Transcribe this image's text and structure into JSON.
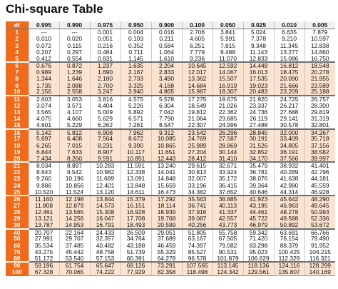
{
  "title": "Chi-square Table",
  "colors": {
    "df_column": "#ef6a1a",
    "band_alt": "#fbe3cf",
    "header_bg": "#f1f1f1"
  },
  "table": {
    "df_header": "df",
    "columns": [
      "0.995",
      "0.990",
      "0.975",
      "0.950",
      "0.900",
      "0.100",
      "0.050",
      "0.025",
      "0.010",
      "0.005"
    ],
    "rows": [
      {
        "df": "1",
        "values": [
          "---",
          "---",
          "0.001",
          "0.004",
          "0.016",
          "2.706",
          "3.841",
          "5.024",
          "6.635",
          "7.879"
        ]
      },
      {
        "df": "2",
        "values": [
          "0.010",
          "0.020",
          "0.051",
          "0.103",
          "0.211",
          "4.605",
          "5.991",
          "7.378",
          "9.210",
          "10.597"
        ]
      },
      {
        "df": "3",
        "values": [
          "0.072",
          "0.115",
          "0.216",
          "0.352",
          "0.584",
          "6.251",
          "7.815",
          "9.348",
          "11.345",
          "12.838"
        ]
      },
      {
        "df": "4",
        "values": [
          "0.207",
          "0.297",
          "0.484",
          "0.711",
          "1.064",
          "7.779",
          "9.488",
          "11.143",
          "13.277",
          "14.860"
        ]
      },
      {
        "df": "5",
        "values": [
          "0.412",
          "0.554",
          "0.831",
          "1.145",
          "1.610",
          "9.236",
          "11.070",
          "12.833",
          "15.086",
          "16.750"
        ]
      },
      {
        "df": "6",
        "values": [
          "0.676",
          "0.872",
          "1.237",
          "1.635",
          "2.204",
          "10.645",
          "12.592",
          "14.449",
          "16.812",
          "18.548"
        ]
      },
      {
        "df": "7",
        "values": [
          "0.989",
          "1.239",
          "1.690",
          "2.167",
          "2.833",
          "12.017",
          "14.067",
          "16.013",
          "18.475",
          "20.278"
        ]
      },
      {
        "df": "8",
        "values": [
          "1.344",
          "1.646",
          "2.180",
          "2.733",
          "3.490",
          "13.362",
          "15.507",
          "17.535",
          "20.090",
          "21.955"
        ]
      },
      {
        "df": "9",
        "values": [
          "1.735",
          "2.088",
          "2.700",
          "3.325",
          "4.168",
          "14.684",
          "16.919",
          "19.023",
          "21.666",
          "23.589"
        ]
      },
      {
        "df": "10",
        "values": [
          "2.156",
          "2.558",
          "3.247",
          "3.940",
          "4.865",
          "15.987",
          "18.307",
          "20.483",
          "23.209",
          "25.188"
        ]
      },
      {
        "df": "11",
        "values": [
          "2.603",
          "3.053",
          "3.816",
          "4.575",
          "5.578",
          "17.275",
          "19.675",
          "21.920",
          "24.725",
          "26.757"
        ]
      },
      {
        "df": "12",
        "values": [
          "3.074",
          "3.571",
          "4.404",
          "5.226",
          "6.304",
          "18.549",
          "21.026",
          "23.337",
          "26.217",
          "28.300"
        ]
      },
      {
        "df": "13",
        "values": [
          "3.565",
          "4.107",
          "5.009",
          "5.892",
          "7.042",
          "19.812",
          "22.362",
          "24.736",
          "27.688",
          "29.819"
        ]
      },
      {
        "df": "14",
        "values": [
          "4.075",
          "4.660",
          "5.629",
          "6.571",
          "7.790",
          "21.064",
          "23.685",
          "26.119",
          "29.141",
          "31.319"
        ]
      },
      {
        "df": "15",
        "values": [
          "4.601",
          "5.229",
          "6.262",
          "7.261",
          "8.547",
          "22.307",
          "24.996",
          "27.488",
          "30.578",
          "32.801"
        ]
      },
      {
        "df": "16",
        "values": [
          "5.142",
          "5.812",
          "6.908",
          "7.962",
          "9.312",
          "23.542",
          "26.296",
          "28.845",
          "32.000",
          "34.267"
        ]
      },
      {
        "df": "17",
        "values": [
          "5.697",
          "6.408",
          "7.564",
          "8.672",
          "10.085",
          "24.769",
          "27.587",
          "30.191",
          "33.409",
          "35.718"
        ]
      },
      {
        "df": "18",
        "values": [
          "6.265",
          "7.015",
          "8.231",
          "9.390",
          "10.865",
          "25.989",
          "28.869",
          "31.526",
          "34.805",
          "37.156"
        ]
      },
      {
        "df": "19",
        "values": [
          "6.844",
          "7.633",
          "8.907",
          "10.117",
          "11.651",
          "27.204",
          "30.144",
          "32.852",
          "36.191",
          "38.582"
        ]
      },
      {
        "df": "20",
        "values": [
          "7.434",
          "8.260",
          "9.591",
          "10.851",
          "12.443",
          "28.412",
          "31.410",
          "34.170",
          "37.566",
          "39.997"
        ]
      },
      {
        "df": "21",
        "values": [
          "8.034",
          "8.897",
          "10.283",
          "11.591",
          "13.240",
          "29.615",
          "32.671",
          "35.479",
          "38.932",
          "41.401"
        ]
      },
      {
        "df": "22",
        "values": [
          "8.643",
          "9.542",
          "10.982",
          "12.338",
          "14.041",
          "30.813",
          "33.924",
          "36.781",
          "40.289",
          "42.796"
        ]
      },
      {
        "df": "23",
        "values": [
          "9.260",
          "10.196",
          "11.689",
          "13.091",
          "14.848",
          "32.007",
          "35.172",
          "38.076",
          "41.638",
          "44.181"
        ]
      },
      {
        "df": "24",
        "values": [
          "9.886",
          "10.856",
          "12.401",
          "13.848",
          "15.659",
          "33.196",
          "36.415",
          "39.364",
          "42.980",
          "45.559"
        ]
      },
      {
        "df": "25",
        "values": [
          "10.520",
          "11.524",
          "13.120",
          "14.611",
          "16.473",
          "34.382",
          "37.652",
          "40.646",
          "44.314",
          "46.928"
        ]
      },
      {
        "df": "26",
        "values": [
          "11.160",
          "12.198",
          "13.844",
          "15.379",
          "17.292",
          "35.563",
          "38.885",
          "41.923",
          "45.642",
          "48.290"
        ]
      },
      {
        "df": "27",
        "values": [
          "11.808",
          "12.879",
          "14.573",
          "16.151",
          "18.114",
          "36.741",
          "40.113",
          "43.195",
          "46.963",
          "49.645"
        ]
      },
      {
        "df": "28",
        "values": [
          "12.461",
          "13.565",
          "15.308",
          "16.928",
          "18.939",
          "37.916",
          "41.337",
          "44.461",
          "48.278",
          "50.993"
        ]
      },
      {
        "df": "29",
        "values": [
          "13.121",
          "14.256",
          "16.047",
          "17.708",
          "19.768",
          "39.087",
          "42.557",
          "45.722",
          "49.588",
          "52.336"
        ]
      },
      {
        "df": "30",
        "values": [
          "13.787",
          "14.953",
          "16.791",
          "18.493",
          "20.599",
          "40.256",
          "43.773",
          "46.979",
          "50.892",
          "53.672"
        ]
      },
      {
        "df": "40",
        "values": [
          "20.707",
          "22.164",
          "24.433",
          "26.509",
          "29.051",
          "51.805",
          "55.758",
          "59.342",
          "63.691",
          "66.766"
        ]
      },
      {
        "df": "50",
        "values": [
          "27.991",
          "29.707",
          "32.357",
          "34.764",
          "37.689",
          "63.167",
          "67.505",
          "71.420",
          "76.154",
          "79.490"
        ]
      },
      {
        "df": "60",
        "values": [
          "35.534",
          "37.485",
          "40.482",
          "43.188",
          "46.459",
          "74.397",
          "79.082",
          "83.298",
          "88.379",
          "91.952"
        ]
      },
      {
        "df": "70",
        "values": [
          "43.275",
          "45.442",
          "48.758",
          "51.739",
          "55.329",
          "85.527",
          "90.531",
          "95.023",
          "100.425",
          "104.215"
        ]
      },
      {
        "df": "80",
        "values": [
          "51.172",
          "53.540",
          "57.153",
          "60.391",
          "64.278",
          "96.578",
          "101.879",
          "106.629",
          "112.329",
          "116.321"
        ]
      },
      {
        "df": "90",
        "values": [
          "59.196",
          "61.754",
          "65.647",
          "69.126",
          "73.291",
          "107.565",
          "113.145",
          "118.136",
          "124.116",
          "128.299"
        ]
      },
      {
        "df": "100",
        "values": [
          "67.328",
          "70.065",
          "74.222",
          "77.929",
          "82.358",
          "118.498",
          "124.342",
          "129.561",
          "135.807",
          "140.169"
        ]
      }
    ]
  }
}
